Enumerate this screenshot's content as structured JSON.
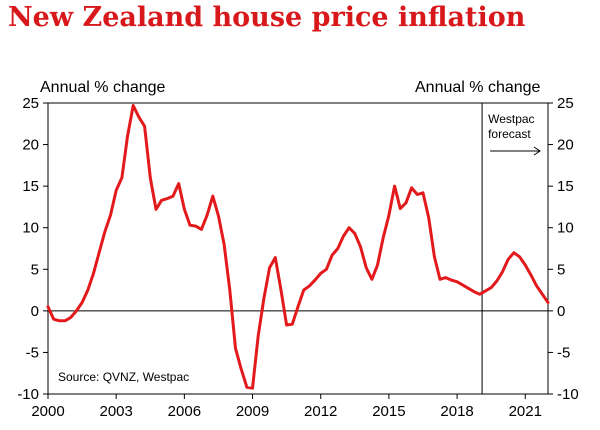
{
  "chart_data": {
    "type": "line",
    "title": "New Zealand house price inflation",
    "ylabel_left": "Annual % change",
    "ylabel_right": "Annual % change",
    "ylim": [
      -10,
      25
    ],
    "xlim": [
      2000,
      2022
    ],
    "yticks": [
      25,
      20,
      15,
      10,
      5,
      0,
      -5,
      -10
    ],
    "xticks": [
      2000,
      2003,
      2006,
      2009,
      2012,
      2015,
      2018,
      2021
    ],
    "forecast_start": 2019.1,
    "forecast_label": [
      "Westpac",
      "forecast"
    ],
    "source": "Source: QVNZ, Westpac",
    "grid": false,
    "series": [
      {
        "color": "#e31a1c",
        "x": [
          2000.0,
          2000.25,
          2000.5,
          2000.75,
          2001.0,
          2001.25,
          2001.5,
          2001.75,
          2002.0,
          2002.25,
          2002.5,
          2002.75,
          2003.0,
          2003.25,
          2003.5,
          2003.75,
          2004.0,
          2004.25,
          2004.5,
          2004.75,
          2005.0,
          2005.25,
          2005.5,
          2005.75,
          2006.0,
          2006.25,
          2006.5,
          2006.75,
          2007.0,
          2007.25,
          2007.5,
          2007.75,
          2008.0,
          2008.25,
          2008.5,
          2008.75,
          2009.0,
          2009.25,
          2009.5,
          2009.75,
          2010.0,
          2010.25,
          2010.5,
          2010.75,
          2011.0,
          2011.25,
          2011.5,
          2011.75,
          2012.0,
          2012.25,
          2012.5,
          2012.75,
          2013.0,
          2013.25,
          2013.5,
          2013.75,
          2014.0,
          2014.25,
          2014.5,
          2014.75,
          2015.0,
          2015.25,
          2015.5,
          2015.75,
          2016.0,
          2016.25,
          2016.5,
          2016.75,
          2017.0,
          2017.25,
          2017.5,
          2017.75,
          2018.0,
          2018.25,
          2018.5,
          2018.75,
          2019.0,
          2019.25,
          2019.5,
          2019.75,
          2020.0,
          2020.25,
          2020.5,
          2020.75,
          2021.0,
          2021.25,
          2021.5,
          2021.75,
          2022.0
        ],
        "y": [
          0.5,
          -1.0,
          -1.2,
          -1.2,
          -0.8,
          0.0,
          1.0,
          2.5,
          4.5,
          7.0,
          9.5,
          11.5,
          14.5,
          16.0,
          21.0,
          24.7,
          23.3,
          22.2,
          16.0,
          12.2,
          13.3,
          13.5,
          13.8,
          15.3,
          12.2,
          10.3,
          10.2,
          9.8,
          11.5,
          13.8,
          11.4,
          8.0,
          2.5,
          -4.5,
          -7.0,
          -9.2,
          -9.3,
          -3.0,
          1.5,
          5.2,
          6.4,
          2.5,
          -1.7,
          -1.6,
          0.5,
          2.5,
          3.0,
          3.7,
          4.5,
          5.0,
          6.7,
          7.5,
          9.0,
          10.0,
          9.3,
          7.7,
          5.2,
          3.8,
          5.5,
          8.8,
          11.5,
          15.0,
          12.3,
          13.0,
          14.8,
          14.0,
          14.2,
          11.2,
          6.5,
          3.8,
          4.0,
          3.7,
          3.5,
          3.1,
          2.7,
          2.3,
          2.0,
          2.4,
          2.8,
          3.6,
          4.7,
          6.2,
          7.0,
          6.5,
          5.5,
          4.3,
          3.0,
          2.0,
          1.0
        ]
      }
    ]
  }
}
